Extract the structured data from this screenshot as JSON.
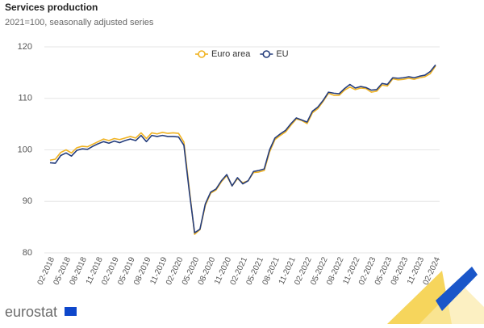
{
  "chart_data": {
    "type": "line",
    "title": "Services production",
    "subtitle": "2021=100, seasonally adjusted series",
    "brand": "eurostat",
    "categories": [
      "02-2018",
      null,
      null,
      "05-2018",
      null,
      null,
      "08-2018",
      null,
      null,
      "11-2018",
      null,
      null,
      "02-2019",
      null,
      null,
      "05-2019",
      null,
      null,
      "08-2019",
      null,
      null,
      "11-2019",
      null,
      null,
      "02-2020",
      null,
      null,
      "05-2020",
      null,
      null,
      "08-2020",
      null,
      null,
      "11-2020",
      null,
      null,
      "02-2021",
      null,
      null,
      "05-2021",
      null,
      null,
      "08-2021",
      null,
      null,
      "11-2021",
      null,
      null,
      "02-2022",
      null,
      null,
      "05-2022",
      null,
      null,
      "08-2022",
      null,
      null,
      "11-2022",
      null,
      null,
      "02-2023",
      null,
      null,
      "05-2023",
      null,
      null,
      "08-2023",
      null,
      null,
      "11-2023",
      null,
      null,
      "02-2024"
    ],
    "series": [
      {
        "name": "Euro area",
        "color": "#f0b323",
        "values": [
          98.0,
          98.2,
          99.5,
          100.0,
          99.4,
          100.4,
          100.7,
          100.6,
          101.1,
          101.6,
          102.1,
          101.8,
          102.2,
          102.0,
          102.3,
          102.6,
          102.3,
          103.3,
          102.2,
          103.3,
          103.1,
          103.4,
          103.2,
          103.3,
          103.2,
          101.5,
          92.5,
          83.6,
          84.5,
          89.2,
          91.6,
          92.2,
          93.8,
          95.0,
          93.0,
          94.4,
          93.6,
          94.0,
          95.6,
          95.7,
          96.0,
          99.6,
          102.0,
          102.8,
          103.5,
          104.8,
          106.0,
          105.7,
          105.1,
          107.2,
          108.0,
          109.4,
          111.0,
          110.6,
          110.6,
          111.6,
          112.2,
          111.7,
          112.0,
          111.9,
          111.2,
          111.4,
          112.6,
          112.4,
          113.8,
          113.6,
          113.7,
          113.9,
          113.7,
          114.0,
          114.2,
          114.8,
          116.3
        ]
      },
      {
        "name": "EU",
        "color": "#253d7c",
        "values": [
          97.5,
          97.4,
          98.9,
          99.4,
          98.8,
          99.9,
          100.2,
          100.1,
          100.7,
          101.2,
          101.6,
          101.3,
          101.7,
          101.4,
          101.8,
          102.1,
          101.8,
          102.8,
          101.6,
          102.8,
          102.6,
          102.8,
          102.6,
          102.6,
          102.5,
          100.9,
          92.0,
          83.9,
          84.6,
          89.5,
          91.8,
          92.4,
          94.0,
          95.2,
          93.0,
          94.6,
          93.4,
          94.0,
          95.8,
          96.0,
          96.3,
          100.0,
          102.3,
          103.1,
          103.8,
          105.1,
          106.2,
          105.8,
          105.4,
          107.5,
          108.3,
          109.6,
          111.2,
          111.0,
          110.9,
          111.9,
          112.7,
          112.0,
          112.3,
          112.1,
          111.6,
          111.7,
          112.9,
          112.7,
          114.0,
          113.9,
          114.0,
          114.2,
          114.0,
          114.3,
          114.5,
          115.2,
          116.5
        ]
      }
    ],
    "ylim": [
      80,
      120
    ],
    "yticks": [
      80,
      90,
      100,
      110,
      120
    ],
    "grid": true
  }
}
